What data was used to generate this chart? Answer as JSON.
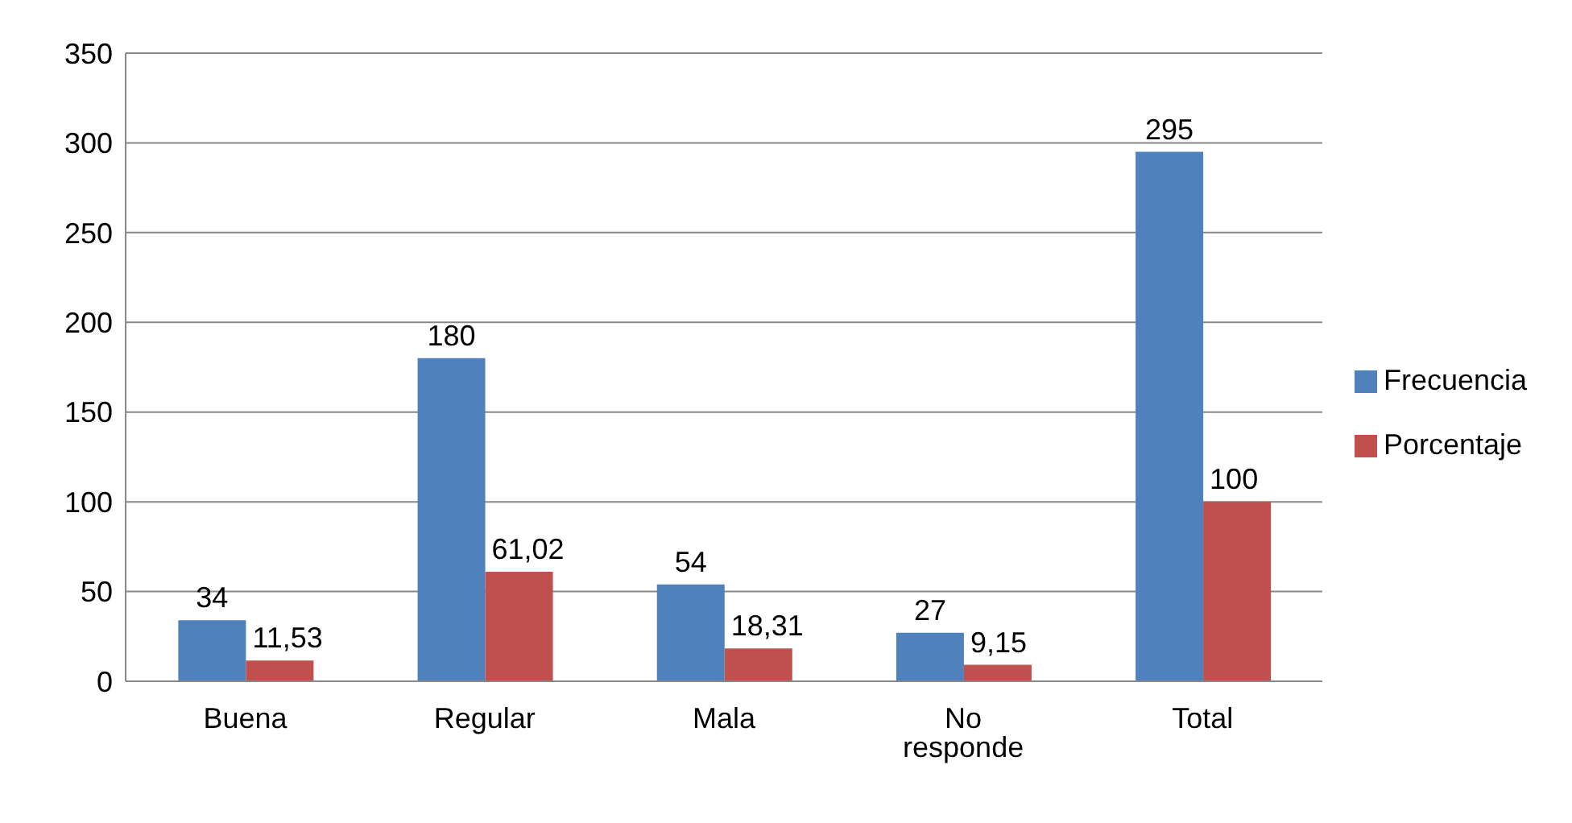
{
  "chart_data": {
    "type": "bar",
    "categories": [
      "Buena",
      "Regular",
      "Mala",
      "No responde",
      "Total"
    ],
    "series": [
      {
        "name": "Frecuencia",
        "color": "#4f81bd",
        "values": [
          34,
          180,
          54,
          27,
          295
        ],
        "value_labels": [
          "34",
          "180",
          "54",
          "27",
          "295"
        ]
      },
      {
        "name": "Porcentaje",
        "color": "#c0504d",
        "values": [
          11.53,
          61.02,
          18.31,
          9.15,
          100
        ],
        "value_labels": [
          "11,53",
          "61,02",
          "18,31",
          "9,15",
          "100"
        ]
      }
    ],
    "ylim": [
      0,
      350
    ],
    "yticks": [
      0,
      50,
      100,
      150,
      200,
      250,
      300,
      350
    ],
    "grid": "y",
    "legend": "right"
  }
}
